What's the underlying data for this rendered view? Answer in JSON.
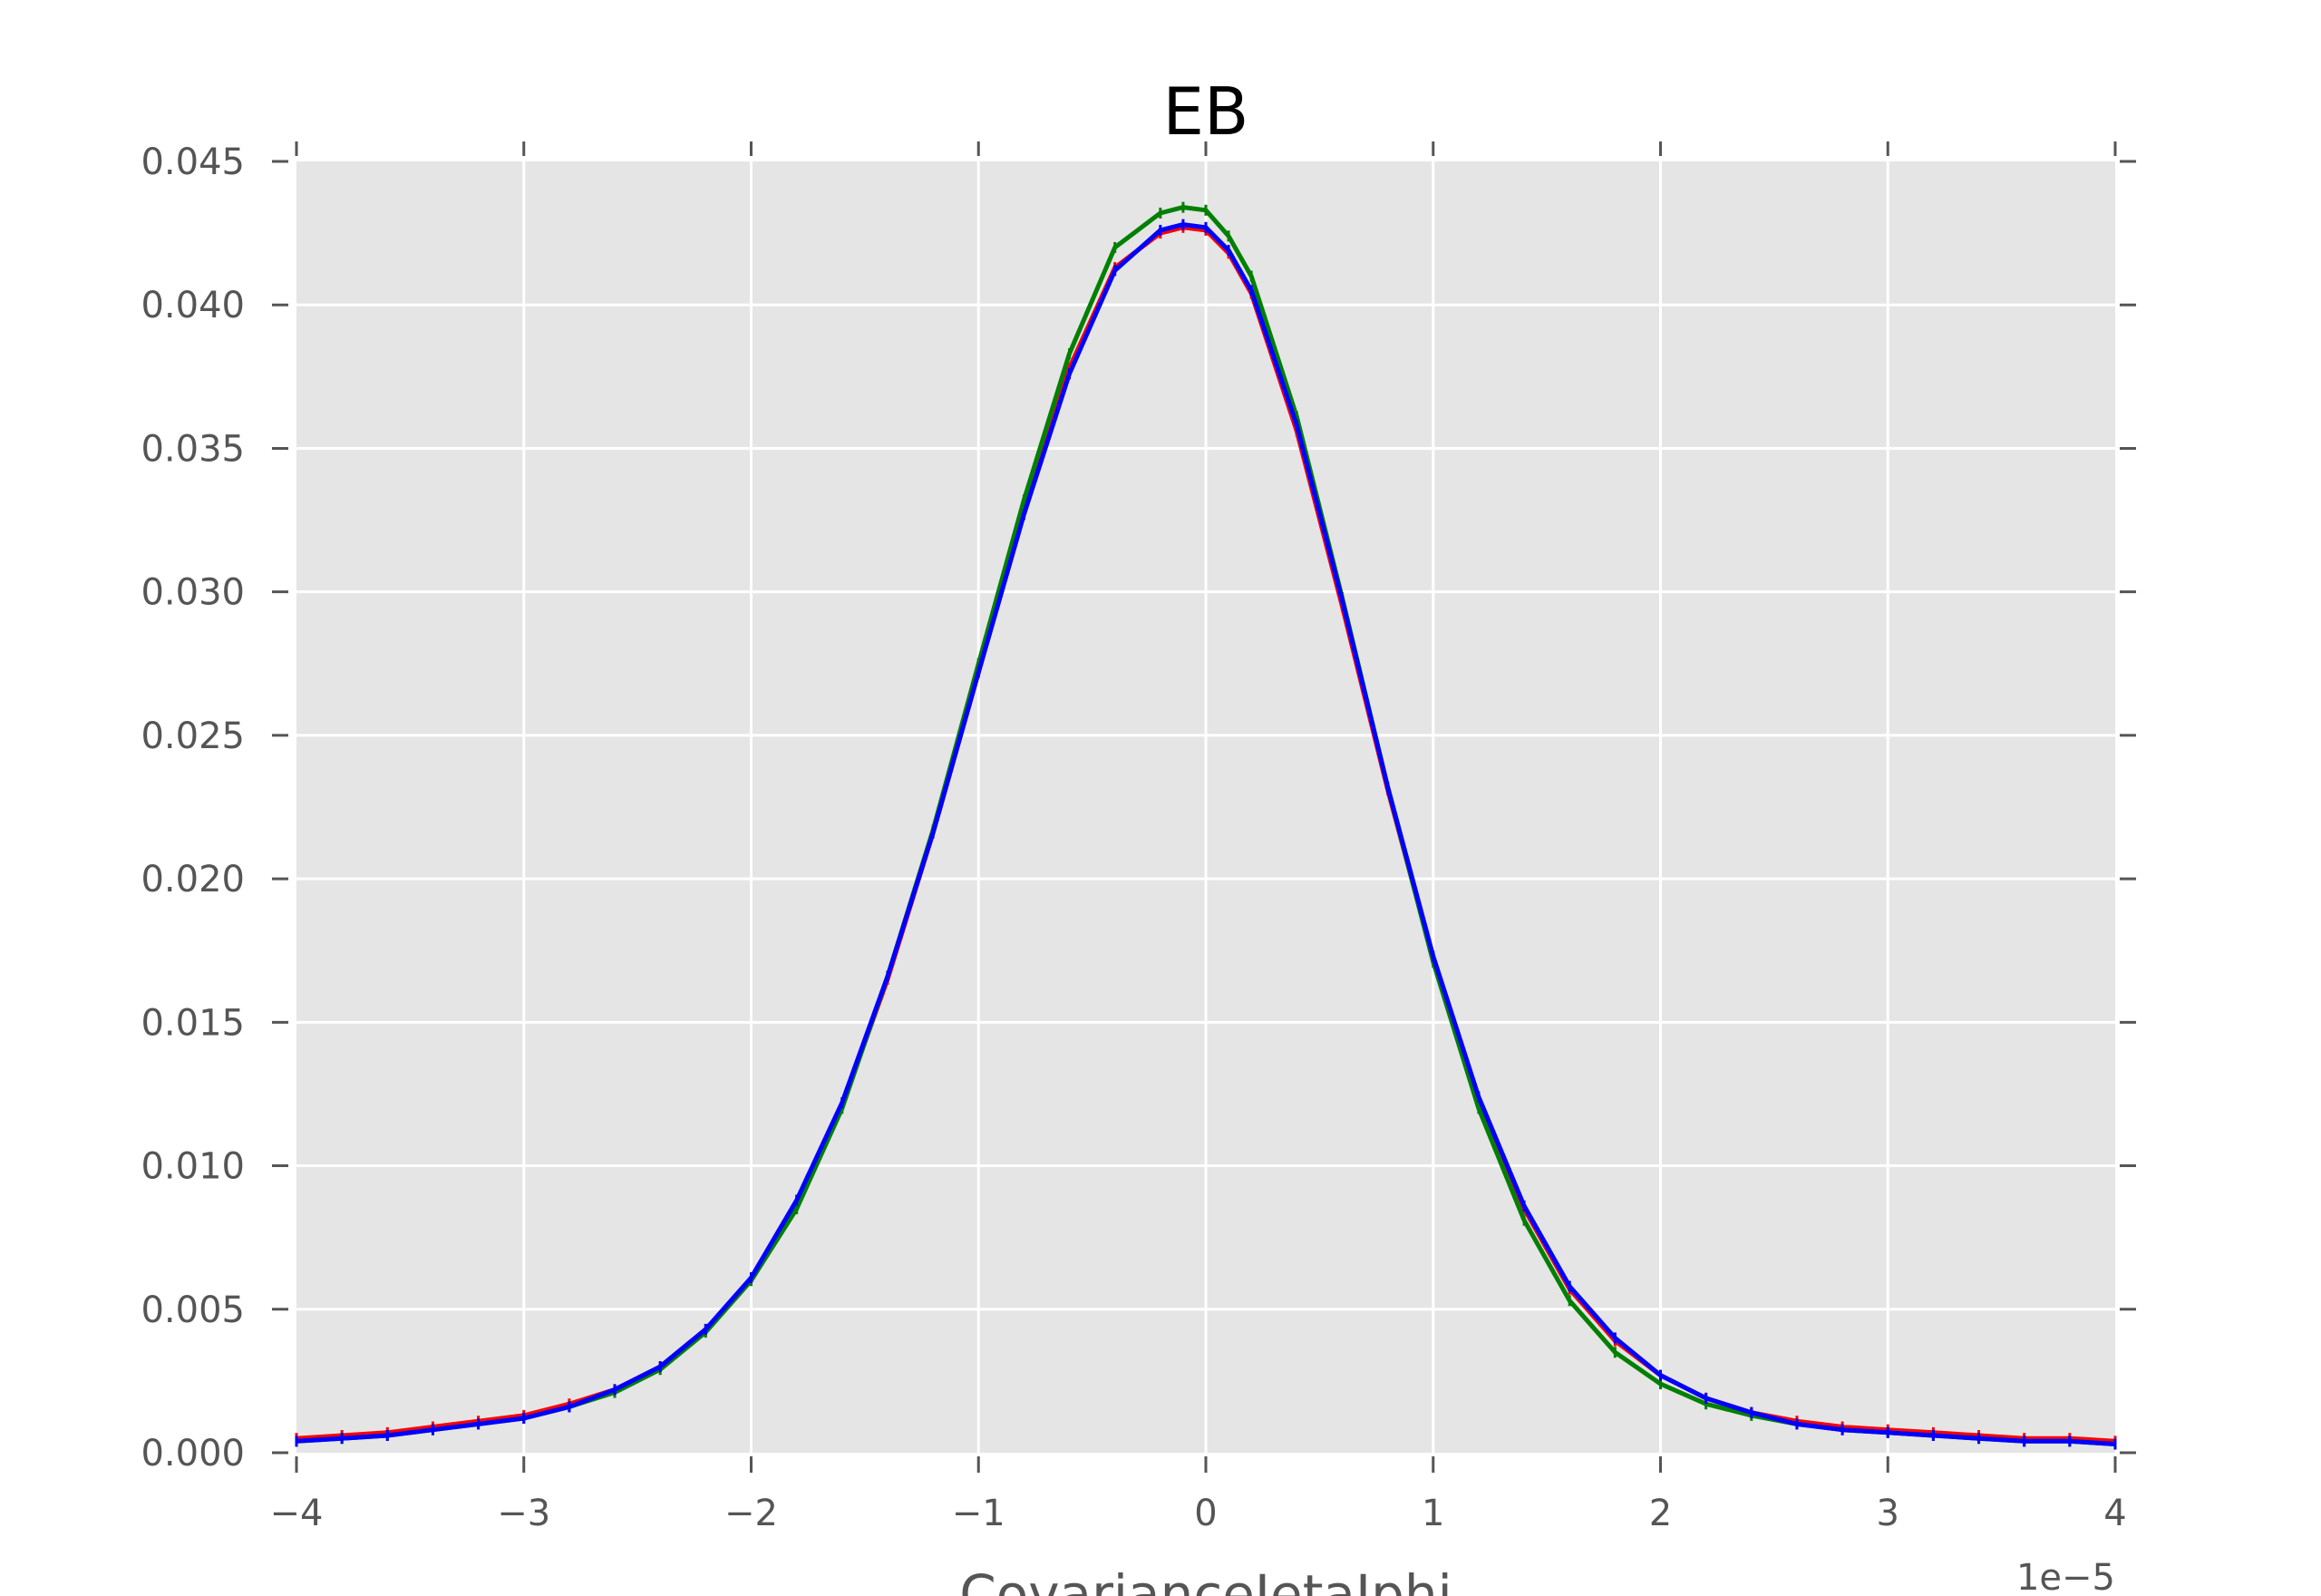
{
  "chart_data": {
    "type": "line",
    "title": "EB",
    "xlabel": "CovarianceIetaIphi",
    "ylabel": "",
    "x_offset_label": "1e−5",
    "xlim": [
      -4,
      4
    ],
    "ylim": [
      0.0,
      0.045
    ],
    "x_unit_scale": 1e-05,
    "grid": true,
    "background": "#e5e5e5",
    "xticks": [
      -4,
      -3,
      -2,
      -1,
      0,
      1,
      2,
      3,
      4
    ],
    "xtick_labels": [
      "−4",
      "−3",
      "−2",
      "−1",
      "0",
      "1",
      "2",
      "3",
      "4"
    ],
    "yticks": [
      0.0,
      0.005,
      0.01,
      0.015,
      0.02,
      0.025,
      0.03,
      0.035,
      0.04,
      0.045
    ],
    "ytick_labels": [
      "0.000",
      "0.005",
      "0.010",
      "0.015",
      "0.020",
      "0.025",
      "0.030",
      "0.035",
      "0.040",
      "0.045"
    ],
    "x": [
      -4.0,
      -3.8,
      -3.6,
      -3.4,
      -3.2,
      -3.0,
      -2.8,
      -2.6,
      -2.4,
      -2.2,
      -2.0,
      -1.8,
      -1.6,
      -1.4,
      -1.2,
      -1.0,
      -0.8,
      -0.6,
      -0.4,
      -0.2,
      -0.1,
      0.0,
      0.1,
      0.2,
      0.4,
      0.6,
      0.8,
      1.0,
      1.2,
      1.4,
      1.6,
      1.8,
      2.0,
      2.2,
      2.4,
      2.6,
      2.8,
      3.0,
      3.2,
      3.4,
      3.6,
      3.8,
      4.0
    ],
    "series": [
      {
        "color": "#ff0000",
        "values": [
          0.0005,
          0.0006,
          0.0007,
          0.0009,
          0.0011,
          0.0013,
          0.0017,
          0.0022,
          0.003,
          0.0043,
          0.006,
          0.0086,
          0.0121,
          0.0165,
          0.0216,
          0.0272,
          0.0328,
          0.0378,
          0.0413,
          0.0425,
          0.0427,
          0.0426,
          0.0418,
          0.0404,
          0.0356,
          0.0295,
          0.0231,
          0.0172,
          0.0123,
          0.0085,
          0.0057,
          0.0039,
          0.0027,
          0.0019,
          0.0014,
          0.0011,
          0.0009,
          0.0008,
          0.0007,
          0.0006,
          0.0005,
          0.0005,
          0.0004
        ]
      },
      {
        "color": "#008000",
        "values": [
          0.0004,
          0.0005,
          0.0006,
          0.0008,
          0.001,
          0.0012,
          0.0016,
          0.0021,
          0.0029,
          0.0042,
          0.006,
          0.0085,
          0.012,
          0.0166,
          0.0217,
          0.0275,
          0.0332,
          0.0383,
          0.042,
          0.0432,
          0.0434,
          0.0433,
          0.0424,
          0.041,
          0.0361,
          0.0298,
          0.0232,
          0.0171,
          0.012,
          0.0081,
          0.0053,
          0.0035,
          0.0024,
          0.0017,
          0.0013,
          0.001,
          0.0008,
          0.0007,
          0.0006,
          0.0005,
          0.0004,
          0.0004,
          0.0003
        ]
      },
      {
        "color": "#0000ff",
        "values": [
          0.0004,
          0.0005,
          0.0006,
          0.0008,
          0.001,
          0.0012,
          0.0016,
          0.0022,
          0.003,
          0.0043,
          0.0061,
          0.0088,
          0.0122,
          0.0166,
          0.0216,
          0.0272,
          0.0327,
          0.0376,
          0.0412,
          0.0426,
          0.0428,
          0.0427,
          0.0419,
          0.0405,
          0.0358,
          0.0297,
          0.0232,
          0.0173,
          0.0124,
          0.0086,
          0.0058,
          0.004,
          0.0027,
          0.0019,
          0.0014,
          0.001,
          0.0008,
          0.0007,
          0.0006,
          0.0005,
          0.0004,
          0.0004,
          0.0003
        ]
      }
    ]
  }
}
